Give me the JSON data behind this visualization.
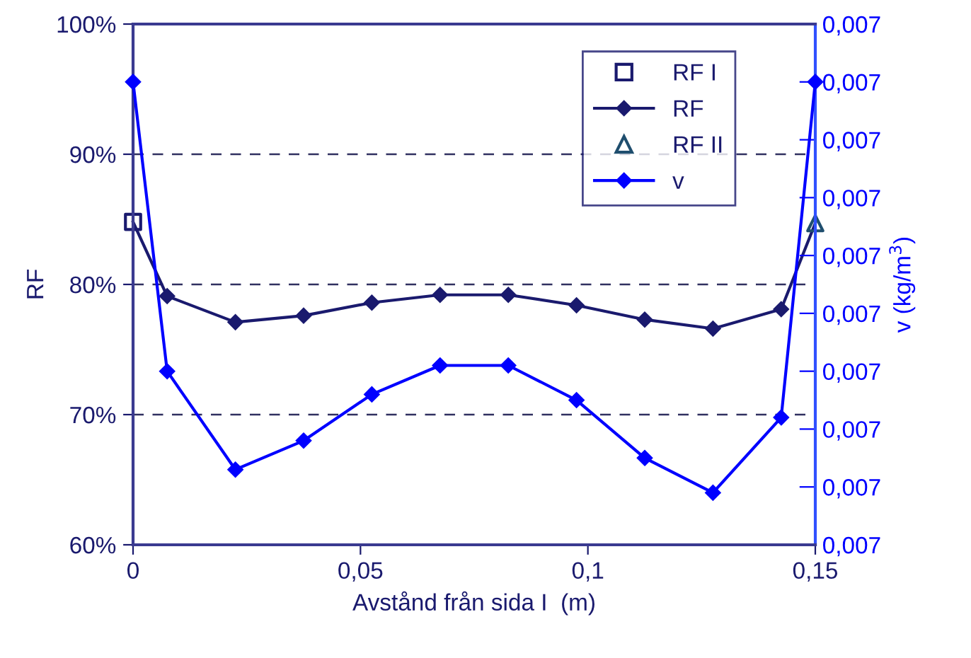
{
  "chart_data": {
    "type": "line",
    "xlabel": "Avstånd från sida I  (m)",
    "ylabel": "RF",
    "y2label": "v (kg/m$^{3}$)",
    "xlim": [
      0,
      0.15
    ],
    "xticks": [
      {
        "value": 0,
        "label": "0"
      },
      {
        "value": 0.05,
        "label": "0,05"
      },
      {
        "value": 0.1,
        "label": "0,1"
      },
      {
        "value": 0.15,
        "label": "0,15"
      }
    ],
    "ylim": [
      60,
      100
    ],
    "yticks": [
      {
        "value": 60,
        "label": "60%"
      },
      {
        "value": 70,
        "label": "70%"
      },
      {
        "value": 80,
        "label": "80%"
      },
      {
        "value": 90,
        "label": "90%"
      },
      {
        "value": 100,
        "label": "100%"
      }
    ],
    "y2lim": [
      0.00655,
      0.00745
    ],
    "y2ticks": [
      {
        "value": 0.00655,
        "label": "0,007"
      },
      {
        "value": 0.00665,
        "label": "0,007"
      },
      {
        "value": 0.00675,
        "label": "0,007"
      },
      {
        "value": 0.00685,
        "label": "0,007"
      },
      {
        "value": 0.00695,
        "label": "0,007"
      },
      {
        "value": 0.00705,
        "label": "0,007"
      },
      {
        "value": 0.00715,
        "label": "0,007"
      },
      {
        "value": 0.00725,
        "label": "0,007"
      },
      {
        "value": 0.00735,
        "label": "0,007"
      },
      {
        "value": 0.00745,
        "label": "0,007"
      }
    ],
    "grid": "y",
    "legend": "top right",
    "series": [
      {
        "name": "RF I",
        "type": "scatter",
        "marker": "square",
        "color": "#1a1a6e",
        "x": [
          0
        ],
        "values": [
          84.8
        ]
      },
      {
        "name": "RF",
        "marker": "diamond",
        "color": "#1a1a6e",
        "x": [
          0,
          0.0075,
          0.0225,
          0.0375,
          0.0525,
          0.0675,
          0.0825,
          0.0975,
          0.1125,
          0.1275,
          0.1425,
          0.15
        ],
        "values": [
          84.8,
          79.1,
          77.1,
          77.6,
          78.6,
          79.2,
          79.2,
          78.4,
          77.3,
          76.6,
          78.1,
          84.7
        ]
      },
      {
        "name": "RF II",
        "type": "scatter",
        "marker": "triangle",
        "color": "#1f4e6e",
        "x": [
          0.15
        ],
        "values": [
          84.7
        ]
      },
      {
        "name": "v",
        "type": "line",
        "marker": "diamond",
        "color": "#0000ff",
        "axis": "y2",
        "x": [
          0,
          0.0075,
          0.0225,
          0.0375,
          0.0525,
          0.0675,
          0.0825,
          0.0975,
          0.1125,
          0.1275,
          0.1425,
          0.15
        ],
        "values": [
          0.00735,
          0.00685,
          0.00668,
          0.00673,
          0.00681,
          0.00686,
          0.00686,
          0.0068,
          0.0067,
          0.00664,
          0.00677,
          0.00735
        ]
      }
    ]
  }
}
